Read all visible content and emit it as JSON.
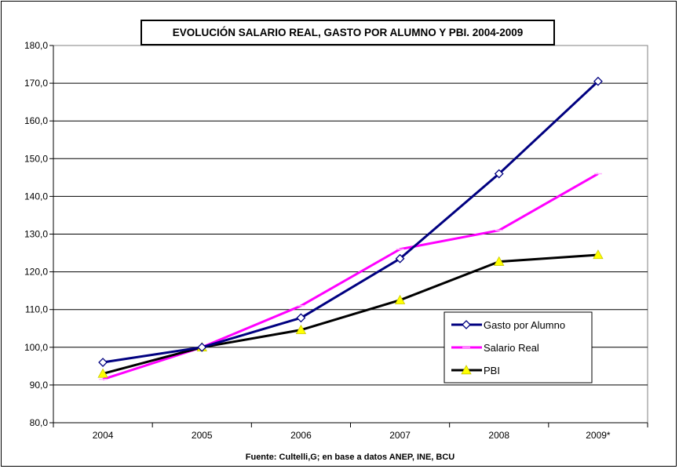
{
  "chart_data": {
    "type": "line",
    "title": "EVOLUCIÓN SALARIO REAL, GASTO POR ALUMNO Y PBI. 2004-2009",
    "xlabel": "Fuente: Cultelli,G; en base a datos ANEP, INE, BCU",
    "ylabel": "",
    "categories": [
      "2004",
      "2005",
      "2006",
      "2007",
      "2008",
      "2009*"
    ],
    "ylim": [
      80,
      180
    ],
    "ytick_step": 10,
    "ytick_labels": [
      "80,0",
      "90,0",
      "100,0",
      "110,0",
      "120,0",
      "130,0",
      "140,0",
      "150,0",
      "160,0",
      "170,0",
      "180,0"
    ],
    "grid": "horizontal",
    "legend_position": "right",
    "series": [
      {
        "name": "Gasto por Alumno",
        "values": [
          96.0,
          100.0,
          107.8,
          123.5,
          146.0,
          170.5
        ],
        "color": "#000080",
        "marker": "diamond-open"
      },
      {
        "name": "Salario Real",
        "values": [
          91.5,
          100.0,
          111.0,
          126.0,
          131.0,
          146.0
        ],
        "color": "#ff00ff",
        "marker": "dash"
      },
      {
        "name": "PBI",
        "values": [
          93.0,
          100.0,
          104.6,
          112.5,
          122.7,
          124.5
        ],
        "color": "#000000",
        "marker": "triangle-yellow"
      }
    ]
  }
}
